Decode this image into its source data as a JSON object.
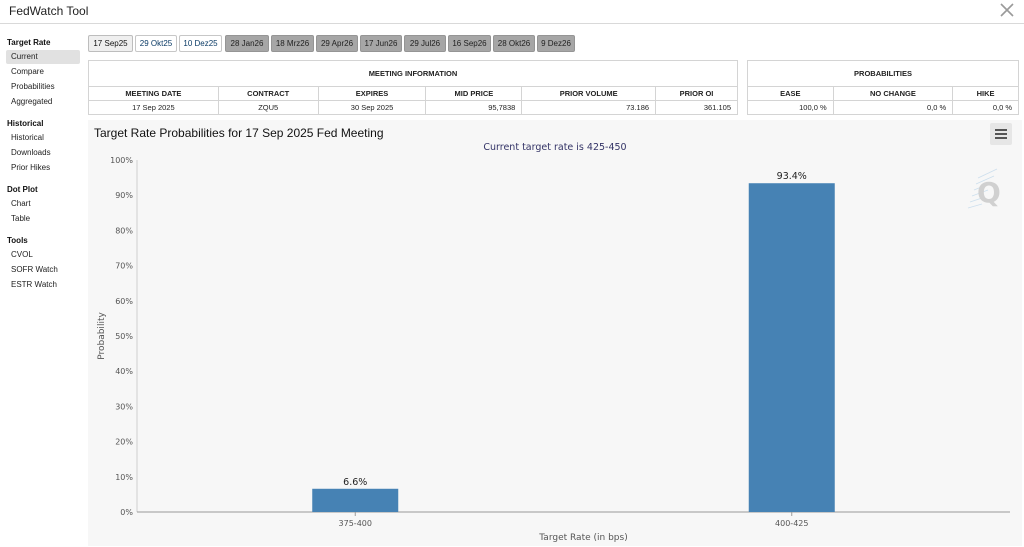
{
  "app": {
    "title": "FedWatch Tool"
  },
  "sidebar": {
    "sections": [
      {
        "title": "Target Rate",
        "items": [
          "Current",
          "Compare",
          "Probabilities",
          "Aggregated"
        ]
      },
      {
        "title": "Historical",
        "items": [
          "Historical",
          "Downloads",
          "Prior Hikes"
        ]
      },
      {
        "title": "Dot Plot",
        "items": [
          "Chart",
          "Table"
        ]
      },
      {
        "title": "Tools",
        "items": [
          "CVOL",
          "SOFR Watch",
          "ESTR Watch"
        ]
      }
    ],
    "active_item": "Current"
  },
  "tabs": [
    {
      "label": "17 Sep25",
      "state": "selected"
    },
    {
      "label": "29 Okt25",
      "state": "normal"
    },
    {
      "label": "10 Dez25",
      "state": "normal"
    },
    {
      "label": "28 Jan26",
      "state": "dim"
    },
    {
      "label": "18 Mrz26",
      "state": "dim"
    },
    {
      "label": "29 Apr26",
      "state": "dim"
    },
    {
      "label": "17 Jun26",
      "state": "dim"
    },
    {
      "label": "29 Jul26",
      "state": "dim"
    },
    {
      "label": "16 Sep26",
      "state": "dim"
    },
    {
      "label": "28 Okt26",
      "state": "dim"
    },
    {
      "label": "9 Dez26",
      "state": "dim"
    }
  ],
  "meeting_info": {
    "header": "MEETING INFORMATION",
    "columns": [
      "MEETING DATE",
      "CONTRACT",
      "EXPIRES",
      "MID PRICE",
      "PRIOR VOLUME",
      "PRIOR OI"
    ],
    "row": [
      "17 Sep 2025",
      "ZQU5",
      "30 Sep 2025",
      "95,7838",
      "73.186",
      "361.105"
    ]
  },
  "probabilities": {
    "header": "PROBABILITIES",
    "columns": [
      "EASE",
      "NO CHANGE",
      "HIKE"
    ],
    "row": [
      "100,0 %",
      "0,0 %",
      "0,0 %"
    ]
  },
  "chart": {
    "menu_icon": "hamburger-menu-icon",
    "watermark_icon": "q-logo-icon"
  },
  "chart_data": {
    "type": "bar",
    "title": "Target Rate Probabilities for 17 Sep 2025 Fed Meeting",
    "subtitle": "Current target rate is 425-450",
    "categories": [
      "375-400",
      "400-425"
    ],
    "values": [
      6.6,
      93.4
    ],
    "data_labels": [
      "6.6%",
      "93.4%"
    ],
    "xlabel": "Target Rate (in bps)",
    "ylabel": "Probability",
    "ylim": [
      0,
      100
    ],
    "yticks": [
      "0%",
      "10%",
      "20%",
      "30%",
      "40%",
      "50%",
      "60%",
      "70%",
      "80%",
      "90%",
      "100%"
    ],
    "grid": false,
    "bar_color": "#4682b4"
  }
}
